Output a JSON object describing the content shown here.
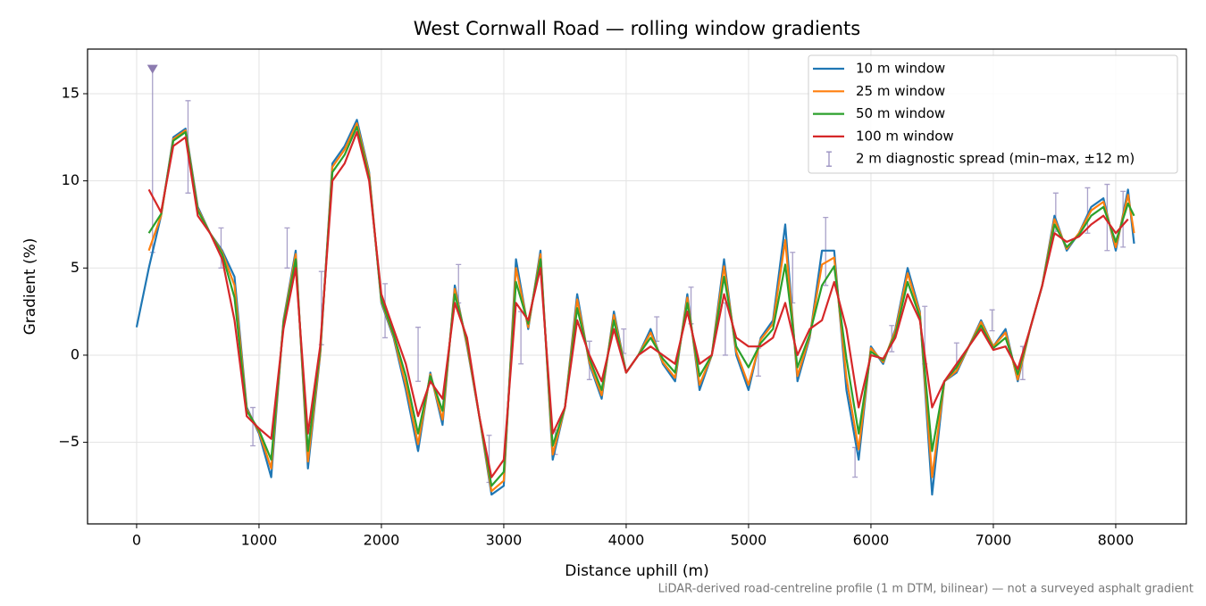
{
  "chart_data": {
    "type": "line",
    "title": "West Cornwall Road — rolling window gradients",
    "xlabel": "Distance uphill (m)",
    "ylabel": "Gradient (%)",
    "footnote": "LiDAR-derived road-centreline profile (1 m DTM, bilinear) — not a surveyed asphalt gradient",
    "xlim": [
      -401,
      8577
    ],
    "ylim": [
      -9.68,
      17.56
    ],
    "xticks": [
      0,
      1000,
      2000,
      3000,
      4000,
      5000,
      6000,
      7000,
      8000
    ],
    "yticks": [
      {
        "value": -5,
        "label": "−5"
      },
      0,
      5,
      10,
      15
    ],
    "grid": true,
    "legend": "upper right",
    "x": [
      0,
      100,
      200,
      300,
      400,
      500,
      600,
      700,
      800,
      900,
      1000,
      1100,
      1200,
      1300,
      1400,
      1500,
      1600,
      1700,
      1800,
      1900,
      2000,
      2100,
      2200,
      2300,
      2400,
      2500,
      2600,
      2700,
      2800,
      2900,
      3000,
      3100,
      3200,
      3300,
      3400,
      3500,
      3600,
      3700,
      3800,
      3900,
      4000,
      4100,
      4200,
      4300,
      4400,
      4500,
      4600,
      4700,
      4800,
      4900,
      5000,
      5100,
      5200,
      5300,
      5400,
      5500,
      5600,
      5700,
      5800,
      5900,
      6000,
      6100,
      6200,
      6300,
      6400,
      6500,
      6600,
      6700,
      6800,
      6900,
      7000,
      7100,
      7200,
      7300,
      7400,
      7500,
      7600,
      7700,
      7800,
      7900,
      8000,
      8100,
      8150
    ],
    "series": [
      {
        "name": "10 m window",
        "color": "#1f77b4",
        "values": [
          1.6,
          5.0,
          8.0,
          12.5,
          13.0,
          8.5,
          7.0,
          6.0,
          4.5,
          -3.0,
          -4.5,
          -7.0,
          2.0,
          6.0,
          -6.5,
          0.0,
          11.0,
          12.0,
          13.5,
          10.5,
          3.0,
          1.0,
          -2.0,
          -5.5,
          -1.0,
          -4.0,
          4.0,
          0.5,
          -3.5,
          -8.0,
          -7.5,
          5.5,
          1.5,
          6.0,
          -6.0,
          -3.0,
          3.5,
          -0.5,
          -2.5,
          2.5,
          -1.0,
          0.0,
          1.5,
          -0.5,
          -1.5,
          3.5,
          -2.0,
          0.0,
          5.5,
          0.0,
          -2.0,
          1.0,
          2.0,
          7.5,
          -1.5,
          1.0,
          6.0,
          6.0,
          -2.0,
          -6.0,
          0.5,
          -0.5,
          1.5,
          5.0,
          2.5,
          -8.0,
          -1.5,
          -1.0,
          0.5,
          2.0,
          0.5,
          1.5,
          -1.5,
          1.5,
          4.0,
          8.0,
          6.0,
          7.0,
          8.5,
          9.0,
          6.0,
          9.5,
          6.4
        ]
      },
      {
        "name": "25 m window",
        "color": "#ff7f0e",
        "values": [
          null,
          6.0,
          8.0,
          12.4,
          12.9,
          8.4,
          7.0,
          5.9,
          4.0,
          -3.1,
          -4.4,
          -6.5,
          1.9,
          5.8,
          -6.1,
          0.1,
          10.8,
          11.8,
          13.3,
          10.4,
          3.1,
          1.1,
          -1.7,
          -5.1,
          -1.1,
          -3.7,
          3.8,
          0.6,
          -3.5,
          -7.8,
          -7.2,
          5.0,
          1.6,
          5.8,
          -5.7,
          -3.0,
          3.2,
          -0.4,
          -2.3,
          2.3,
          -1.0,
          0.0,
          1.3,
          -0.4,
          -1.3,
          3.3,
          -1.7,
          0.0,
          5.1,
          0.2,
          -1.7,
          0.9,
          1.8,
          6.6,
          -1.2,
          1.1,
          5.2,
          5.6,
          -1.3,
          -5.4,
          0.4,
          -0.4,
          1.4,
          4.7,
          2.4,
          -7.0,
          -1.5,
          -0.9,
          0.5,
          1.9,
          0.5,
          1.3,
          -1.4,
          1.5,
          4.0,
          7.8,
          6.1,
          7.0,
          8.3,
          8.8,
          6.2,
          9.2,
          7.0
        ]
      },
      {
        "name": "50 m window",
        "color": "#2ca02c",
        "values": [
          null,
          7.0,
          8.1,
          12.3,
          12.8,
          8.3,
          7.0,
          5.8,
          3.3,
          -3.2,
          -4.3,
          -6.0,
          1.8,
          5.5,
          -5.5,
          0.3,
          10.5,
          11.5,
          13.1,
          10.2,
          3.2,
          1.2,
          -1.2,
          -4.5,
          -1.2,
          -3.2,
          3.5,
          0.8,
          -3.5,
          -7.5,
          -6.7,
          4.2,
          1.8,
          5.5,
          -5.2,
          -3.0,
          2.7,
          -0.2,
          -2.0,
          2.0,
          -1.0,
          0.0,
          1.0,
          -0.2,
          -1.0,
          3.0,
          -1.2,
          0.0,
          4.5,
          0.5,
          -0.7,
          0.7,
          1.5,
          5.2,
          -0.7,
          1.2,
          4.0,
          5.1,
          -0.2,
          -4.5,
          0.2,
          -0.3,
          1.2,
          4.2,
          2.2,
          -5.5,
          -1.5,
          -0.7,
          0.5,
          1.7,
          0.4,
          1.0,
          -1.1,
          1.5,
          4.0,
          7.5,
          6.2,
          6.9,
          8.0,
          8.5,
          6.5,
          8.7,
          8.0
        ]
      },
      {
        "name": "100 m window",
        "color": "#d62728",
        "values": [
          null,
          9.5,
          8.2,
          12.0,
          12.5,
          8.0,
          7.0,
          5.5,
          2.0,
          -3.5,
          -4.2,
          -4.8,
          1.5,
          5.0,
          -4.5,
          0.5,
          10.0,
          11.0,
          12.8,
          10.0,
          3.5,
          1.5,
          -0.5,
          -3.5,
          -1.5,
          -2.5,
          3.0,
          1.0,
          -3.5,
          -7.0,
          -6.0,
          3.0,
          2.0,
          5.0,
          -4.5,
          -3.0,
          2.0,
          0.0,
          -1.5,
          1.5,
          -1.0,
          0.0,
          0.5,
          0.0,
          -0.5,
          2.5,
          -0.5,
          0.0,
          3.5,
          1.0,
          0.5,
          0.5,
          1.0,
          3.0,
          0.0,
          1.5,
          2.0,
          4.2,
          1.5,
          -3.0,
          0.0,
          -0.2,
          1.0,
          3.5,
          2.0,
          -3.0,
          -1.5,
          -0.5,
          0.5,
          1.5,
          0.3,
          0.5,
          -0.8,
          1.5,
          4.0,
          7.0,
          6.5,
          6.8,
          7.5,
          8.0,
          7.0,
          7.8,
          null
        ]
      }
    ],
    "errorbars": {
      "name": "2 m diagnostic spread (min–max, ±12 m)",
      "color": "#9a90c0",
      "x": [
        130,
        420,
        690,
        950,
        1230,
        1510,
        2030,
        2300,
        2630,
        2880,
        3140,
        3420,
        3700,
        3980,
        4250,
        4530,
        4810,
        5080,
        5360,
        5630,
        5870,
        6170,
        6440,
        6700,
        6990,
        7240,
        7510,
        7770,
        7930,
        8060
      ],
      "low": [
        5.9,
        9.3,
        5.0,
        -5.2,
        5.0,
        0.6,
        1.0,
        -1.5,
        3.0,
        -7.3,
        -0.5,
        -5.7,
        -1.4,
        0.1,
        0.8,
        1.8,
        0.0,
        -1.2,
        3.0,
        4.0,
        -7.0,
        0.2,
        -0.5,
        -0.8,
        1.4,
        -1.4,
        7.1,
        7.0,
        6.0,
        6.2
      ],
      "high": [
        16.5,
        14.6,
        7.3,
        -3.0,
        7.3,
        4.8,
        4.1,
        1.6,
        5.2,
        -4.6,
        2.5,
        -4.3,
        0.8,
        1.5,
        2.2,
        3.9,
        3.0,
        0.4,
        5.9,
        7.9,
        -5.3,
        1.7,
        2.8,
        0.7,
        2.6,
        0.5,
        9.3,
        9.6,
        9.8,
        9.4
      ]
    },
    "marker": {
      "x": 130,
      "y": 16.4,
      "color": "#8c7bb0"
    }
  }
}
